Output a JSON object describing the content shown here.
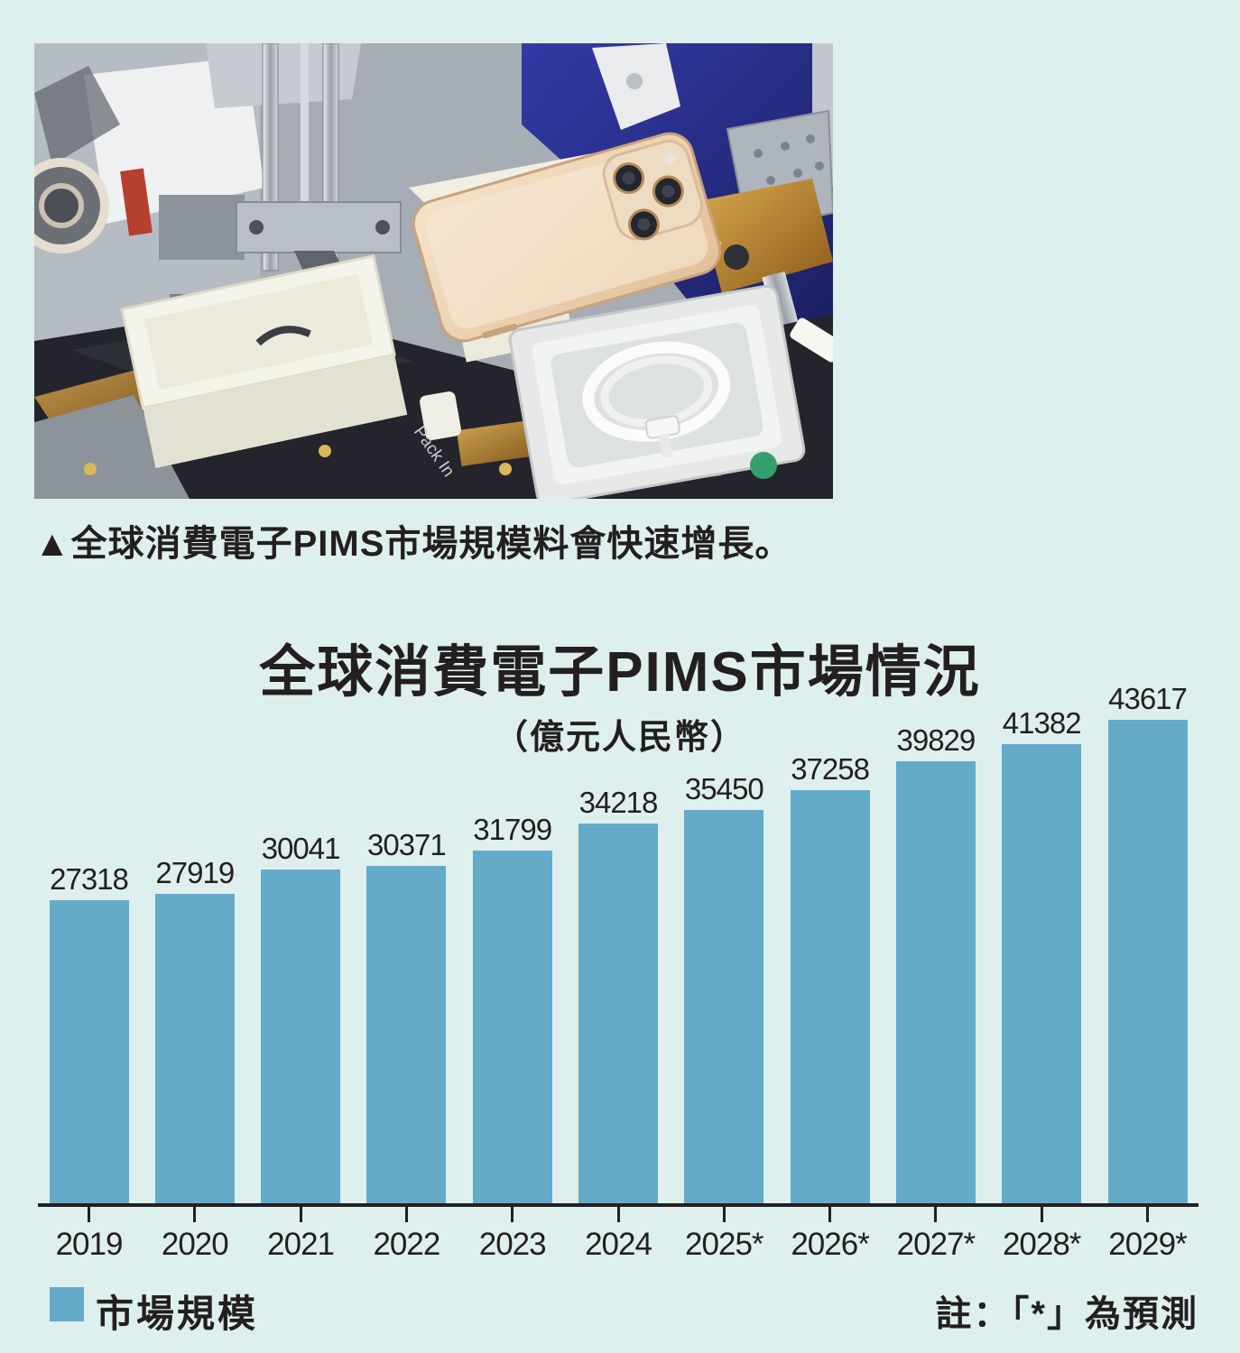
{
  "page": {
    "background": "#ddf0ee",
    "text_color": "#231f20"
  },
  "photo": {
    "caption": "▲全球消費電子PIMS市場規模料會快速增長。",
    "deck_label": "Pack In"
  },
  "chart_data": {
    "type": "bar",
    "title": "全球消費電子PIMS市場情況",
    "subtitle": "（億元人民幣）",
    "categories": [
      "2019",
      "2020",
      "2021",
      "2022",
      "2023",
      "2024",
      "2025*",
      "2026*",
      "2027*",
      "2028*",
      "2029*"
    ],
    "values": [
      27318,
      27919,
      30041,
      30371,
      31799,
      34218,
      35450,
      37258,
      39829,
      41382,
      43617
    ],
    "ylim": [
      0,
      45000
    ],
    "grid": false,
    "value_labels": true,
    "bar_color": "#65aac9",
    "axis_color": "#231f20",
    "legend": {
      "position": "bottom-left",
      "items": [
        {
          "label": "市場規模",
          "color": "#65aac9"
        }
      ]
    },
    "note": "註：「*」為預測"
  }
}
